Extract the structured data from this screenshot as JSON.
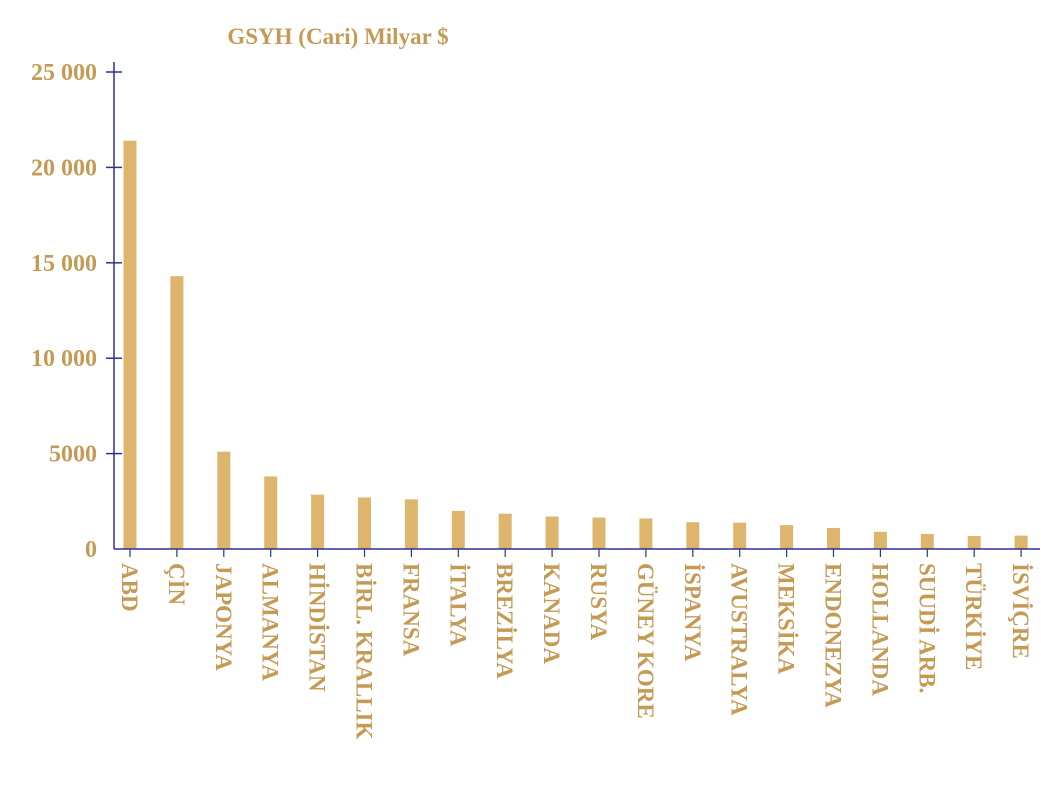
{
  "chart_data": {
    "type": "bar",
    "title": "GSYH (Cari) Milyar $",
    "xlabel": "",
    "ylabel": "",
    "ylim": [
      0,
      25000
    ],
    "yticks": [
      0,
      5000,
      10000,
      15000,
      20000,
      25000
    ],
    "ytick_labels": [
      "0",
      "5000",
      "10 000",
      "15 000",
      "20 000",
      "25 000"
    ],
    "grid": false,
    "categories": [
      "ABD",
      "ÇİN",
      "JAPONYA",
      "ALMANYA",
      "HİNDİSTAN",
      "BİRL. KRALLIK",
      "FRANSA",
      "İTALYA",
      "BREZİLYA",
      "KANADA",
      "RUSYA",
      "GÜNEY KORE",
      "İSPANYA",
      "AVUSTRALYA",
      "MEKSİKA",
      "ENDONEZYA",
      "HOLLANDA",
      "SUUDİ ARB.",
      "TÜRKİYE",
      "İSVİÇRE"
    ],
    "values": [
      21400,
      14300,
      5100,
      3800,
      2850,
      2700,
      2600,
      2000,
      1850,
      1700,
      1650,
      1600,
      1400,
      1380,
      1250,
      1100,
      900,
      790,
      680,
      700
    ],
    "colors": {
      "bar": "#ddb56c",
      "axis": "#2e3192",
      "text": "#c49a55"
    }
  }
}
